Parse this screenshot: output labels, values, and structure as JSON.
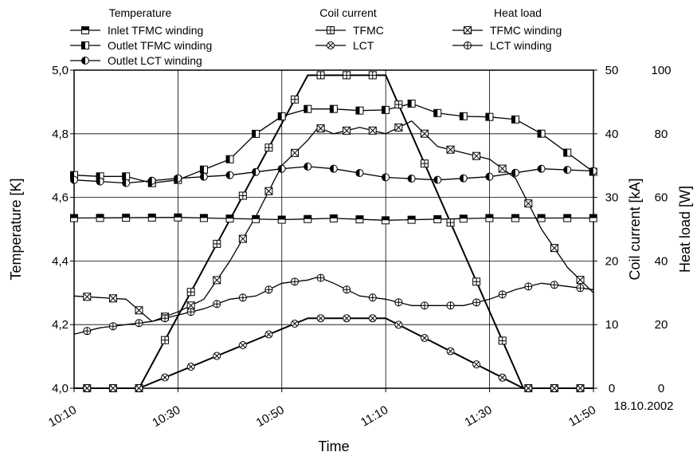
{
  "chart_data": {
    "type": "line",
    "x_axis": {
      "label": "Time",
      "range": [
        10.1667,
        11.8333
      ],
      "ticks": [
        {
          "value": 10.1667,
          "label": "10:10"
        },
        {
          "value": 10.5,
          "label": "10:30"
        },
        {
          "value": 10.8333,
          "label": "10:50"
        },
        {
          "value": 11.1667,
          "label": "11:10"
        },
        {
          "value": 11.5,
          "label": "11:30"
        },
        {
          "value": 11.8333,
          "label": "11:50"
        }
      ],
      "date_label": "18.10.2002"
    },
    "left_axis": {
      "label": "Temperature [K]",
      "range": [
        4.0,
        5.0
      ],
      "ticks": [
        {
          "value": 4.0,
          "label": "4,0"
        },
        {
          "value": 4.2,
          "label": "4,2"
        },
        {
          "value": 4.4,
          "label": "4,4"
        },
        {
          "value": 4.6,
          "label": "4,6"
        },
        {
          "value": 4.8,
          "label": "4,8"
        },
        {
          "value": 5.0,
          "label": "5,0"
        }
      ]
    },
    "right_axis_1": {
      "label": "Coil current [kA]",
      "range": [
        0,
        50
      ],
      "ticks": [
        {
          "value": 0,
          "label": "0"
        },
        {
          "value": 10,
          "label": "10"
        },
        {
          "value": 20,
          "label": "20"
        },
        {
          "value": 30,
          "label": "30"
        },
        {
          "value": 40,
          "label": "40"
        },
        {
          "value": 50,
          "label": "50"
        }
      ]
    },
    "right_axis_2": {
      "label": "Heat load [W]",
      "range": [
        0,
        100
      ],
      "ticks": [
        {
          "value": 0,
          "label": "0"
        },
        {
          "value": 20,
          "label": "20"
        },
        {
          "value": 40,
          "label": "40"
        },
        {
          "value": 60,
          "label": "60"
        },
        {
          "value": 80,
          "label": "80"
        },
        {
          "value": 100,
          "label": "100"
        }
      ]
    },
    "grid": true,
    "legend_groups": [
      {
        "title": "Temperature",
        "entries": [
          "Inlet TFMC winding",
          "Outlet TFMC winding",
          "Outlet LCT winding"
        ]
      },
      {
        "title": "Coil current",
        "entries": [
          "TFMC",
          "LCT"
        ]
      },
      {
        "title": "Heat load",
        "entries": [
          "TFMC winding",
          "LCT winding"
        ]
      }
    ],
    "series": [
      {
        "name": "Inlet TFMC winding",
        "axis": "temperature",
        "marker": "square-top-filled",
        "marker_step": 0.0833,
        "x": [
          10.1667,
          10.5,
          10.8333,
          11.0,
          11.1667,
          11.5,
          11.8333
        ],
        "y": [
          4.535,
          4.537,
          4.53,
          4.534,
          4.528,
          4.535,
          4.535
        ]
      },
      {
        "name": "Outlet TFMC winding",
        "axis": "temperature",
        "marker": "square-left-filled",
        "marker_step": 0.0833,
        "x": [
          10.1667,
          10.25,
          10.3333,
          10.4167,
          10.5,
          10.6667,
          10.75,
          10.8333,
          10.9167,
          11.0,
          11.0833,
          11.1667,
          11.25,
          11.3333,
          11.4167,
          11.5,
          11.5833,
          11.6667,
          11.75,
          11.8333
        ],
        "y": [
          4.67,
          4.666,
          4.666,
          4.645,
          4.655,
          4.72,
          4.8,
          4.855,
          4.878,
          4.878,
          4.873,
          4.875,
          4.895,
          4.865,
          4.855,
          4.853,
          4.845,
          4.8,
          4.74,
          4.68
        ]
      },
      {
        "name": "Outlet LCT winding",
        "axis": "temperature",
        "marker": "circle-left-filled",
        "marker_step": 0.0833,
        "x": [
          10.1667,
          10.3333,
          10.5,
          10.6667,
          10.8333,
          10.9167,
          11.0,
          11.1667,
          11.3333,
          11.5,
          11.6667,
          11.8333
        ],
        "y": [
          4.655,
          4.645,
          4.66,
          4.67,
          4.69,
          4.697,
          4.69,
          4.663,
          4.655,
          4.665,
          4.69,
          4.683
        ]
      },
      {
        "name": "TFMC",
        "axis": "current",
        "marker": "square-cross",
        "marker_step": 0.0833,
        "x": [
          10.1667,
          10.375,
          10.9167,
          11.1667,
          11.6083,
          11.8333
        ],
        "y": [
          0,
          0,
          49.2,
          49.2,
          0,
          0
        ]
      },
      {
        "name": "LCT",
        "axis": "current",
        "marker": "circle-x",
        "marker_step": 0.0833,
        "x": [
          10.1667,
          10.375,
          10.9167,
          11.1667,
          11.6083,
          11.8333
        ],
        "y": [
          0,
          0,
          11.0,
          11.0,
          0,
          0
        ]
      },
      {
        "name": "TFMC winding",
        "axis": "heat",
        "marker": "square-x",
        "marker_step": 0.0833,
        "x": [
          10.1667,
          10.3333,
          10.4167,
          10.5,
          10.5833,
          10.6667,
          10.75,
          10.8333,
          10.9167,
          10.95,
          11.0,
          11.0833,
          11.1667,
          11.25,
          11.3333,
          11.4167,
          11.5,
          11.5833,
          11.6667,
          11.75,
          11.8333
        ],
        "y": [
          29,
          28,
          21,
          24,
          28,
          40,
          54,
          70,
          78,
          82,
          80,
          82,
          80,
          84,
          76,
          74,
          72,
          66,
          50,
          38,
          30
        ]
      },
      {
        "name": "LCT winding",
        "axis": "heat",
        "marker": "circle-plus",
        "marker_step": 0.0833,
        "x": [
          10.1667,
          10.25,
          10.3333,
          10.4167,
          10.5,
          10.5833,
          10.6667,
          10.75,
          10.8333,
          10.9167,
          10.95,
          11.0,
          11.0833,
          11.1667,
          11.25,
          11.3333,
          11.4167,
          11.5,
          11.5833,
          11.6667,
          11.75,
          11.8333
        ],
        "y": [
          17,
          19,
          20,
          21,
          23,
          25,
          28,
          29,
          33,
          34,
          35,
          33,
          29,
          28,
          26,
          26,
          26,
          28,
          31,
          33,
          32,
          31
        ]
      }
    ]
  }
}
